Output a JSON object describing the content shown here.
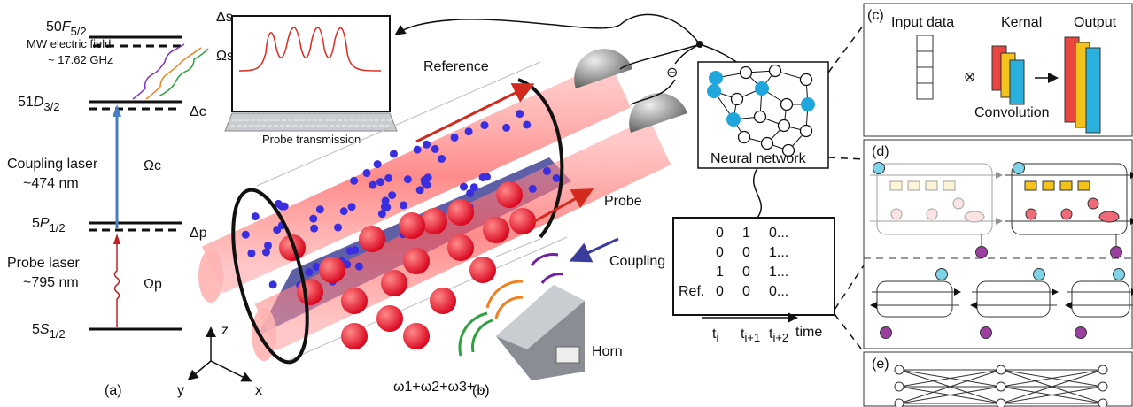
{
  "panel_a": {
    "label": "(a)",
    "levels": [
      {
        "number": "50",
        "letter": "F",
        "sub": "5/2",
        "detuning": "Δs"
      },
      {
        "number": "51",
        "letter": "D",
        "sub": "3/2",
        "detuning": "Δc"
      },
      {
        "number": "5",
        "letter": "P",
        "sub": "1/2",
        "detuning": "Δp"
      },
      {
        "number": "5",
        "letter": "S",
        "sub": "1/2"
      }
    ],
    "mw_field": [
      "MW electric field",
      "~ 17.62 GHz"
    ],
    "rabi": [
      "Ωs",
      "Ωc",
      "Ωp"
    ],
    "coupling_laser": [
      "Coupling laser",
      "~474 nm"
    ],
    "probe_laser": [
      "Probe laser",
      "~795 nm"
    ]
  },
  "axes": [
    "z",
    "y",
    "x"
  ],
  "panel_b": {
    "label": "(b)",
    "probe_transmission": "Probe transmission",
    "reference": "Reference",
    "probe": "Probe",
    "coupling": "Coupling",
    "horn": "Horn",
    "frequencies": "ω1+ω2+ω3+...",
    "neural_network": "Neural network",
    "subtract": "⊖"
  },
  "table": {
    "rows": [
      [
        "0",
        "1",
        "0..."
      ],
      [
        "0",
        "0",
        "1..."
      ],
      [
        "1",
        "0",
        "1..."
      ],
      [
        "0",
        "0",
        "0..."
      ]
    ],
    "row_label": "Ref.",
    "time_labels": [
      {
        "main": "t",
        "sub": "i"
      },
      {
        "main": "t",
        "sub": "i+1"
      },
      {
        "main": "t",
        "sub": "i+2"
      }
    ],
    "time_axis": "time"
  },
  "panel_c": {
    "label": "(c)",
    "input_data": "Input data",
    "kernel": "Kernal",
    "output": "Output",
    "convolution": "Convolution",
    "operator": "⊗"
  },
  "panel_d": {
    "label": "(d)"
  },
  "panel_e": {
    "label": "(e)"
  }
}
